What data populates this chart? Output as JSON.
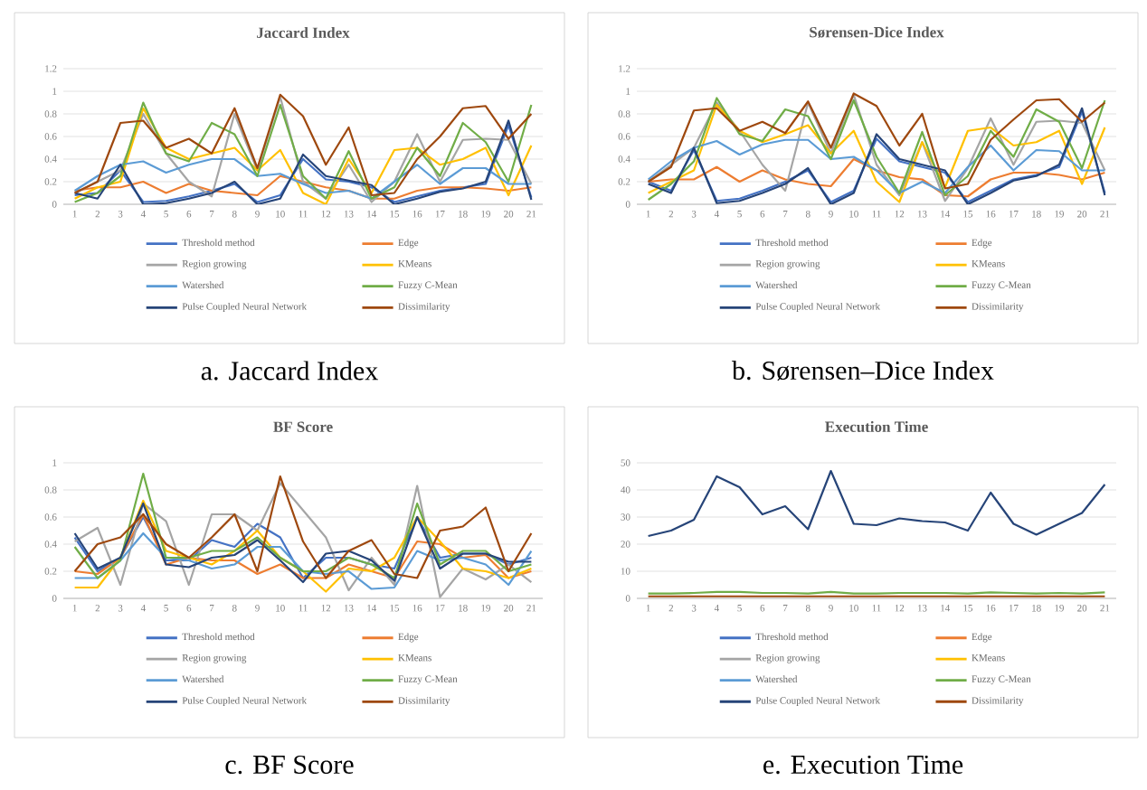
{
  "chart_data": [
    {
      "type": "line",
      "title": "Jaccard Index",
      "categories": [
        "1",
        "2",
        "3",
        "4",
        "5",
        "6",
        "7",
        "8",
        "9",
        "10",
        "11",
        "12",
        "13",
        "14",
        "15",
        "16",
        "17",
        "18",
        "19",
        "20",
        "21"
      ],
      "ylim": [
        0,
        1.2
      ],
      "yticks": [
        0,
        0.2,
        0.4,
        0.6,
        0.8,
        1,
        1.2
      ],
      "grid": "y",
      "legend": "bottom",
      "annotations": [
        "a. Jaccard Index"
      ],
      "series": [
        {
          "name": "Threshold method",
          "color": "#4472c4",
          "values": [
            0.08,
            0.1,
            0.3,
            0.02,
            0.03,
            0.07,
            0.12,
            0.18,
            0.02,
            0.08,
            0.4,
            0.22,
            0.2,
            0.15,
            0.02,
            0.07,
            0.12,
            0.15,
            0.18,
            0.7,
            0.06
          ]
        },
        {
          "name": "Edge",
          "color": "#ed7d31",
          "values": [
            0.12,
            0.15,
            0.15,
            0.2,
            0.1,
            0.18,
            0.12,
            0.1,
            0.08,
            0.25,
            0.2,
            0.15,
            0.12,
            0.05,
            0.05,
            0.12,
            0.15,
            0.15,
            0.14,
            0.12,
            0.15
          ]
        },
        {
          "name": "Region growing",
          "color": "#a5a5a5",
          "values": [
            0.1,
            0.2,
            0.3,
            0.8,
            0.45,
            0.2,
            0.07,
            0.8,
            0.3,
            0.95,
            0.2,
            0.05,
            0.35,
            0.02,
            0.2,
            0.62,
            0.2,
            0.57,
            0.58,
            0.57,
            0.18
          ]
        },
        {
          "name": "KMeans",
          "color": "#ffc000",
          "values": [
            0.05,
            0.15,
            0.2,
            0.85,
            0.5,
            0.4,
            0.45,
            0.5,
            0.3,
            0.48,
            0.1,
            0,
            0.4,
            0.1,
            0.48,
            0.5,
            0.35,
            0.4,
            0.5,
            0.08,
            0.52
          ]
        },
        {
          "name": "Watershed",
          "color": "#5b9bd5",
          "values": [
            0.12,
            0.25,
            0.35,
            0.38,
            0.28,
            0.35,
            0.4,
            0.4,
            0.25,
            0.27,
            0.18,
            0.1,
            0.12,
            0.05,
            0.2,
            0.35,
            0.18,
            0.32,
            0.32,
            0.18,
            0.18
          ]
        },
        {
          "name": "Fuzzy C-Mean",
          "color": "#70ad47",
          "values": [
            0.02,
            0.1,
            0.25,
            0.9,
            0.45,
            0.38,
            0.72,
            0.62,
            0.25,
            0.88,
            0.25,
            0.05,
            0.47,
            0.05,
            0.15,
            0.5,
            0.25,
            0.72,
            0.55,
            0.2,
            0.88
          ]
        },
        {
          "name": "Pulse Coupled Neural Network",
          "color": "#264478",
          "values": [
            0.1,
            0.05,
            0.35,
            0,
            0.01,
            0.05,
            0.1,
            0.2,
            0,
            0.05,
            0.44,
            0.25,
            0.21,
            0.17,
            0,
            0.05,
            0.11,
            0.14,
            0.2,
            0.74,
            0.04
          ]
        },
        {
          "name": "Dissimilarity",
          "color": "#9e480e",
          "values": [
            0.1,
            0.2,
            0.72,
            0.74,
            0.5,
            0.58,
            0.45,
            0.85,
            0.32,
            0.97,
            0.78,
            0.35,
            0.68,
            0.08,
            0.1,
            0.4,
            0.6,
            0.85,
            0.87,
            0.58,
            0.8
          ]
        }
      ]
    },
    {
      "type": "line",
      "title": "Sørensen-Dice Index",
      "categories": [
        "1",
        "2",
        "3",
        "4",
        "5",
        "6",
        "7",
        "8",
        "9",
        "10",
        "11",
        "12",
        "13",
        "14",
        "15",
        "16",
        "17",
        "18",
        "19",
        "20",
        "21"
      ],
      "ylim": [
        0,
        1.2
      ],
      "yticks": [
        0,
        0.2,
        0.4,
        0.6,
        0.8,
        1,
        1.2
      ],
      "grid": "y",
      "legend": "bottom",
      "annotations": [
        "b. Sørensen–Dice Index"
      ],
      "series": [
        {
          "name": "Threshold method",
          "color": "#4472c4",
          "values": [
            0.2,
            0.12,
            0.48,
            0.03,
            0.05,
            0.12,
            0.2,
            0.3,
            0.02,
            0.12,
            0.58,
            0.38,
            0.33,
            0.28,
            0.02,
            0.12,
            0.22,
            0.26,
            0.33,
            0.82,
            0.1
          ]
        },
        {
          "name": "Edge",
          "color": "#ed7d31",
          "values": [
            0.2,
            0.22,
            0.22,
            0.33,
            0.2,
            0.3,
            0.22,
            0.18,
            0.16,
            0.4,
            0.3,
            0.24,
            0.22,
            0.08,
            0.07,
            0.22,
            0.28,
            0.28,
            0.26,
            0.22,
            0.28
          ]
        },
        {
          "name": "Region growing",
          "color": "#a5a5a5",
          "values": [
            0.2,
            0.35,
            0.5,
            0.9,
            0.65,
            0.35,
            0.12,
            0.9,
            0.45,
            0.97,
            0.35,
            0.08,
            0.55,
            0.03,
            0.32,
            0.76,
            0.35,
            0.73,
            0.74,
            0.72,
            0.3
          ]
        },
        {
          "name": "KMeans",
          "color": "#ffc000",
          "values": [
            0.1,
            0.2,
            0.3,
            0.88,
            0.65,
            0.55,
            0.62,
            0.7,
            0.45,
            0.65,
            0.2,
            0.02,
            0.55,
            0.15,
            0.65,
            0.68,
            0.52,
            0.55,
            0.65,
            0.18,
            0.68
          ]
        },
        {
          "name": "Watershed",
          "color": "#5b9bd5",
          "values": [
            0.22,
            0.38,
            0.5,
            0.56,
            0.44,
            0.53,
            0.57,
            0.57,
            0.4,
            0.42,
            0.3,
            0.1,
            0.2,
            0.1,
            0.33,
            0.52,
            0.3,
            0.48,
            0.47,
            0.3,
            0.3
          ]
        },
        {
          "name": "Fuzzy C-Mean",
          "color": "#70ad47",
          "values": [
            0.04,
            0.18,
            0.38,
            0.94,
            0.62,
            0.56,
            0.84,
            0.78,
            0.4,
            0.92,
            0.42,
            0.1,
            0.64,
            0.08,
            0.25,
            0.65,
            0.42,
            0.84,
            0.73,
            0.32,
            0.92
          ]
        },
        {
          "name": "Pulse Coupled Neural Network",
          "color": "#264478",
          "values": [
            0.18,
            0.1,
            0.5,
            0.01,
            0.03,
            0.1,
            0.18,
            0.32,
            0,
            0.1,
            0.62,
            0.4,
            0.35,
            0.3,
            0,
            0.1,
            0.21,
            0.25,
            0.35,
            0.85,
            0.08
          ]
        },
        {
          "name": "Dissimilarity",
          "color": "#9e480e",
          "values": [
            0.2,
            0.33,
            0.83,
            0.85,
            0.65,
            0.73,
            0.63,
            0.91,
            0.5,
            0.98,
            0.87,
            0.52,
            0.8,
            0.14,
            0.18,
            0.57,
            0.75,
            0.92,
            0.93,
            0.73,
            0.9
          ]
        }
      ]
    },
    {
      "type": "line",
      "title": "BF Score",
      "categories": [
        "1",
        "2",
        "3",
        "4",
        "5",
        "6",
        "7",
        "8",
        "9",
        "10",
        "11",
        "12",
        "13",
        "14",
        "15",
        "16",
        "17",
        "18",
        "19",
        "20",
        "21"
      ],
      "ylim": [
        0,
        1
      ],
      "yticks": [
        0,
        0.2,
        0.4,
        0.6,
        0.8,
        1
      ],
      "grid": "y",
      "legend": "bottom",
      "annotations": [
        "c. BF Score"
      ],
      "series": [
        {
          "name": "Threshold method",
          "color": "#4472c4",
          "values": [
            0.45,
            0.2,
            0.3,
            0.6,
            0.28,
            0.28,
            0.43,
            0.38,
            0.55,
            0.45,
            0.15,
            0.3,
            0.3,
            0.25,
            0.22,
            0.6,
            0.3,
            0.33,
            0.33,
            0.25,
            0.3
          ]
        },
        {
          "name": "Edge",
          "color": "#ed7d31",
          "values": [
            0.2,
            0.18,
            0.3,
            0.62,
            0.25,
            0.3,
            0.28,
            0.28,
            0.18,
            0.25,
            0.15,
            0.15,
            0.25,
            0.2,
            0.15,
            0.42,
            0.4,
            0.3,
            0.32,
            0.15,
            0.2
          ]
        },
        {
          "name": "Region growing",
          "color": "#a5a5a5",
          "values": [
            0.42,
            0.52,
            0.1,
            0.7,
            0.57,
            0.1,
            0.62,
            0.62,
            0.5,
            0.85,
            0.65,
            0.45,
            0.06,
            0.3,
            0.1,
            0.83,
            0.01,
            0.22,
            0.14,
            0.25,
            0.12
          ]
        },
        {
          "name": "KMeans",
          "color": "#ffc000",
          "values": [
            0.08,
            0.08,
            0.3,
            0.72,
            0.35,
            0.3,
            0.25,
            0.35,
            0.5,
            0.3,
            0.2,
            0.05,
            0.22,
            0.2,
            0.3,
            0.6,
            0.42,
            0.22,
            0.2,
            0.15,
            0.22
          ]
        },
        {
          "name": "Watershed",
          "color": "#5b9bd5",
          "values": [
            0.15,
            0.15,
            0.28,
            0.48,
            0.3,
            0.28,
            0.22,
            0.25,
            0.38,
            0.38,
            0.2,
            0.18,
            0.2,
            0.07,
            0.08,
            0.35,
            0.28,
            0.3,
            0.25,
            0.1,
            0.35
          ]
        },
        {
          "name": "Fuzzy C-Mean",
          "color": "#70ad47",
          "values": [
            0.38,
            0.15,
            0.28,
            0.92,
            0.3,
            0.3,
            0.35,
            0.35,
            0.45,
            0.3,
            0.2,
            0.2,
            0.3,
            0.25,
            0.15,
            0.7,
            0.25,
            0.35,
            0.35,
            0.2,
            0.25
          ]
        },
        {
          "name": "Pulse Coupled Neural Network",
          "color": "#264478",
          "values": [
            0.48,
            0.22,
            0.3,
            0.7,
            0.25,
            0.23,
            0.3,
            0.32,
            0.43,
            0.28,
            0.12,
            0.33,
            0.35,
            0.28,
            0.13,
            0.6,
            0.22,
            0.33,
            0.33,
            0.27,
            0.27
          ]
        },
        {
          "name": "Dissimilarity",
          "color": "#9e480e",
          "values": [
            0.2,
            0.4,
            0.45,
            0.62,
            0.4,
            0.3,
            0.45,
            0.62,
            0.2,
            0.9,
            0.42,
            0.15,
            0.35,
            0.43,
            0.18,
            0.15,
            0.5,
            0.53,
            0.67,
            0.2,
            0.48
          ]
        }
      ]
    },
    {
      "type": "line",
      "title": "Execution Time",
      "categories": [
        "1",
        "2",
        "3",
        "4",
        "5",
        "6",
        "7",
        "8",
        "9",
        "10",
        "11",
        "12",
        "13",
        "14",
        "15",
        "16",
        "17",
        "18",
        "19",
        "20",
        "21"
      ],
      "ylim": [
        0,
        50
      ],
      "yticks": [
        0,
        10,
        20,
        30,
        40,
        50
      ],
      "grid": "y",
      "legend": "bottom",
      "annotations": [
        "e. Execution Time"
      ],
      "series": [
        {
          "name": "Threshold method",
          "color": "#4472c4",
          "values": [
            null,
            null,
            null,
            null,
            null,
            null,
            null,
            null,
            null,
            null,
            null,
            null,
            null,
            null,
            null,
            null,
            null,
            null,
            null,
            null,
            null
          ]
        },
        {
          "name": "Edge",
          "color": "#ed7d31",
          "values": [
            null,
            null,
            null,
            null,
            null,
            null,
            null,
            null,
            null,
            null,
            null,
            null,
            null,
            null,
            null,
            null,
            null,
            null,
            null,
            null,
            null
          ]
        },
        {
          "name": "Region growing",
          "color": "#a5a5a5",
          "values": [
            null,
            null,
            null,
            null,
            null,
            null,
            null,
            null,
            null,
            null,
            null,
            null,
            null,
            null,
            null,
            null,
            null,
            null,
            null,
            null,
            null
          ]
        },
        {
          "name": "KMeans",
          "color": "#ffc000",
          "values": [
            null,
            null,
            null,
            null,
            null,
            null,
            null,
            null,
            null,
            null,
            null,
            null,
            null,
            null,
            null,
            null,
            null,
            null,
            null,
            null,
            null
          ]
        },
        {
          "name": "Watershed",
          "color": "#5b9bd5",
          "values": [
            null,
            null,
            null,
            null,
            null,
            null,
            null,
            null,
            null,
            null,
            null,
            null,
            null,
            null,
            null,
            null,
            null,
            null,
            null,
            null,
            null
          ]
        },
        {
          "name": "Fuzzy C-Mean",
          "color": "#70ad47",
          "values": [
            1.8,
            1.8,
            2,
            2.4,
            2.4,
            2,
            2,
            1.8,
            2.4,
            1.8,
            1.8,
            2,
            2,
            2,
            1.8,
            2.2,
            2,
            1.8,
            2,
            1.8,
            2.2
          ]
        },
        {
          "name": "Pulse Coupled Neural Network",
          "color": "#264478",
          "values": [
            23,
            25,
            29,
            45,
            41,
            31,
            34,
            25.5,
            47,
            27.5,
            27,
            29.5,
            28.5,
            28,
            25,
            39,
            27.5,
            23.5,
            27.5,
            31.5,
            42
          ]
        },
        {
          "name": "Dissimilarity",
          "color": "#9e480e",
          "values": [
            0.8,
            0.8,
            0.8,
            0.8,
            0.8,
            0.8,
            0.8,
            0.8,
            0.8,
            0.8,
            0.8,
            0.8,
            0.8,
            0.8,
            0.8,
            0.8,
            0.8,
            0.8,
            0.8,
            0.8,
            0.8
          ]
        }
      ]
    }
  ]
}
